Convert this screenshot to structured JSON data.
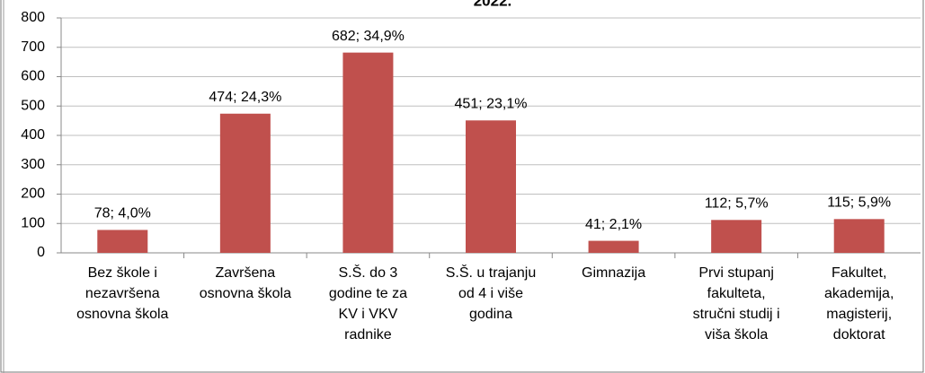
{
  "chart_data": {
    "type": "bar",
    "title": "2022.",
    "categories": [
      [
        "Bez škole i",
        "nezavršena",
        "osnovna škola"
      ],
      [
        "Završena",
        "osnovna škola"
      ],
      [
        "S.Š. do 3",
        "godine te za",
        "KV i VKV",
        "radnike"
      ],
      [
        "S.Š. u trajanju",
        "od 4 i više",
        "godina"
      ],
      [
        "Gimnazija"
      ],
      [
        "Prvi stupanj",
        "fakulteta,",
        "stručni studij i",
        "viša škola"
      ],
      [
        "Fakultet,",
        "akademija,",
        "magisterij,",
        "doktorat"
      ]
    ],
    "values": [
      78,
      474,
      682,
      451,
      41,
      112,
      115
    ],
    "value_labels": [
      "78; 4,0%",
      "474; 24,3%",
      "682; 34,9%",
      "451; 23,1%",
      "41; 2,1%",
      "112; 5,7%",
      "115; 5,9%"
    ],
    "color": "#c0504d",
    "ylim": [
      0,
      800
    ],
    "yticks": [
      0,
      100,
      200,
      300,
      400,
      500,
      600,
      700,
      800
    ],
    "grid": true
  }
}
